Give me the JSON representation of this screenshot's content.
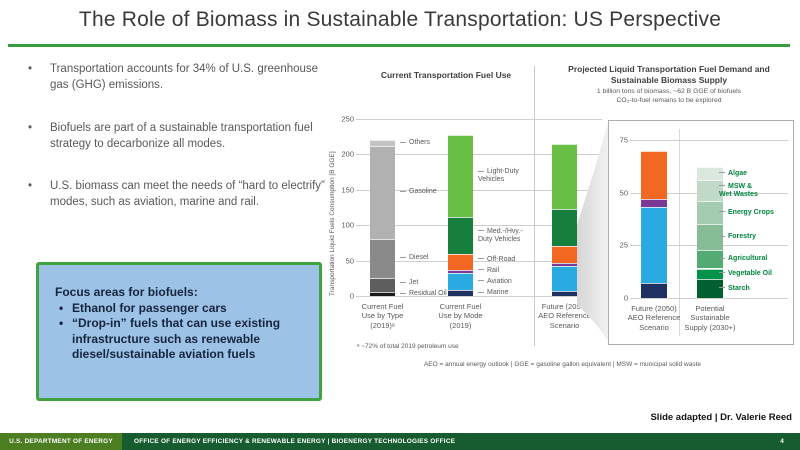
{
  "slide": {
    "title": "The Role of Biomass in Sustainable Transportation: US Perspective",
    "attribution": "Slide adapted | Dr. Valerie Reed",
    "page_number": "4"
  },
  "bullets": [
    "Transportation accounts for 34% of U.S. greenhouse gas (GHG) emissions.",
    "Biofuels are part of a sustainable transportation fuel strategy to decarbonize all modes.",
    "U.S. biomass can meet the needs of “hard to electrify” modes, such as aviation, marine and rail."
  ],
  "focus_box": {
    "title": "Focus areas for biofuels:",
    "items": [
      "Ethanol for passenger cars",
      "“Drop-in” fuels that can use existing infrastructure such as renewable diesel/sustainable aviation fuels"
    ]
  },
  "chart_data": [
    {
      "type": "bar",
      "stacked": true,
      "title": "Current Transportation Fuel Use",
      "ylabel": "Transportation Liquid Fuels Consumption [B GGE]",
      "ylim": [
        0,
        250
      ],
      "yticks": [
        0,
        50,
        100,
        150,
        200,
        250
      ],
      "grid": "on",
      "bars": [
        {
          "category": "Current Fuel\nUse by Type\n(2019)ᵃ",
          "segments": [
            {
              "label": "Residual Oil",
              "value": 5,
              "color": "#1a1a1a"
            },
            {
              "label": "Jet",
              "value": 20,
              "color": "#5e5e5e"
            },
            {
              "label": "Diesel",
              "value": 56,
              "color": "#8a8a8a"
            },
            {
              "label": "Gasoline",
              "value": 131,
              "color": "#b1b1b1"
            },
            {
              "label": "Others",
              "value": 8,
              "color": "#c3c3c3"
            }
          ]
        },
        {
          "category": "Current Fuel\nUse by Mode\n(2019)",
          "segments": [
            {
              "label": "Marine",
              "value": 8,
              "color": "#1f3160"
            },
            {
              "label": "Aviation",
              "value": 24,
              "color": "#29aae1"
            },
            {
              "label": "Rail",
              "value": 5,
              "color": "#7c3a96"
            },
            {
              "label": "Off-Road",
              "value": 22,
              "color": "#f26822"
            },
            {
              "label": "Med.-/Hvy.-\nDuty Vehicles",
              "value": 52,
              "color": "#177f3d"
            },
            {
              "label": "Light-Duty\nVehicles",
              "value": 117,
              "color": "#6abf45"
            }
          ]
        },
        {
          "category": "Future (2050)\nAEO Reference\nScenario",
          "segments": [
            {
              "label": "Marine",
              "value": 7,
              "color": "#1f3160"
            },
            {
              "label": "Aviation",
              "value": 36,
              "color": "#29aae1"
            },
            {
              "label": "Rail",
              "value": 4,
              "color": "#7c3a96"
            },
            {
              "label": "Off-Road",
              "value": 23,
              "color": "#f26822"
            },
            {
              "label": "Med.-/Hvy.-Duty Vehicles",
              "value": 53,
              "color": "#177f3d"
            },
            {
              "label": "Light-Duty Vehicles",
              "value": 92,
              "color": "#6abf45"
            }
          ]
        }
      ]
    },
    {
      "type": "bar",
      "stacked": true,
      "title": "Projected Liquid Transportation Fuel Demand and Sustainable Biomass Supply",
      "subtitle": [
        "1 billion tons of biomass, ~62 B GGE of biofuels",
        "CO₂-to-fuel remains to be explored"
      ],
      "ylim": [
        0,
        75
      ],
      "yticks": [
        0,
        25,
        50,
        75
      ],
      "grid": "on",
      "bars": [
        {
          "category": "Future (2050)\nAEO Reference\nScenario",
          "segments": [
            {
              "label": "Marine",
              "value": 7,
              "color": "#1f3160"
            },
            {
              "label": "Aviation",
              "value": 36,
              "color": "#29aae1"
            },
            {
              "label": "Rail",
              "value": 4,
              "color": "#7c3a96"
            },
            {
              "label": "Off-Road",
              "value": 23,
              "color": "#f26822"
            }
          ]
        },
        {
          "category": "Potential\nSustainable\nSupply (2030+)",
          "segments": [
            {
              "label": "Starch",
              "value": 9,
              "color": "#00602f"
            },
            {
              "label": "Vegetable Oil",
              "value": 5,
              "color": "#00944a"
            },
            {
              "label": "Agricultural",
              "value": 9,
              "color": "#52ab72"
            },
            {
              "label": "Forestry",
              "value": 12,
              "color": "#86bd97"
            },
            {
              "label": "Energy Crops",
              "value": 11,
              "color": "#a4ccb1"
            },
            {
              "label": "MSW &\nWet Wastes",
              "value": 10,
              "color": "#c1d9c7"
            },
            {
              "label": "Algae",
              "value": 6,
              "color": "#dae8dd"
            }
          ]
        }
      ]
    }
  ],
  "footnotes": {
    "petroleum": "ᵃ ~72% of total 2019 petroleum use",
    "abbreviations": "AEO = annual energy outlook  |  GGE = gasoline gallon equivalent  |  MSW = municipal solid waste"
  },
  "footer": {
    "department": "U.S. DEPARTMENT OF ENERGY",
    "office": "OFFICE OF ENERGY EFFICIENCY & RENEWABLE ENERGY  |  BIOENERGY TECHNOLOGIES OFFICE"
  },
  "colors": {
    "accent_green": "#369e3e",
    "focus_box_fill": "#9cc3e6",
    "focus_box_border": "#3fa33f",
    "footer_left_green": "#4c7d21",
    "footer_dark_green": "#175c2e",
    "supply_label_green": "#00853f"
  }
}
